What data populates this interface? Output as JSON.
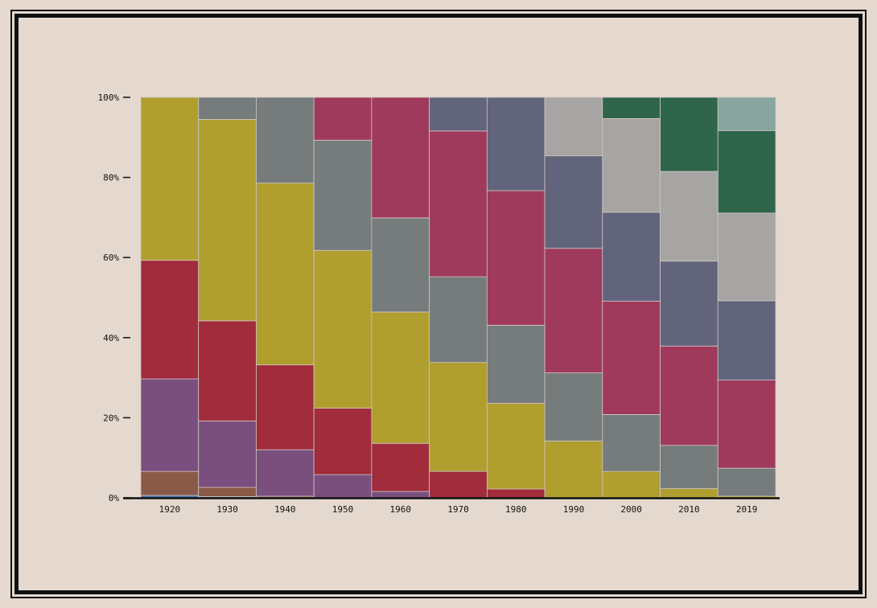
{
  "chart_data": {
    "type": "bar",
    "stacked": true,
    "normalized_percent": true,
    "title": "",
    "xlabel": "",
    "ylabel": "",
    "ylim": [
      0,
      100
    ],
    "grid": false,
    "legend": "none",
    "categories": [
      "1920",
      "1930",
      "1940",
      "1950",
      "1960",
      "1970",
      "1980",
      "1990",
      "2000",
      "2010",
      "2019"
    ],
    "y_ticks": [
      "0%",
      "20%",
      "40%",
      "60%",
      "80%",
      "100%"
    ],
    "series": [
      {
        "color": "#4a6fa5",
        "values": [
          0.6,
          0.3,
          0,
          0,
          0,
          0,
          0,
          0,
          0,
          0,
          0
        ]
      },
      {
        "color": "#8a5a48",
        "values": [
          6.0,
          2.3,
          0.4,
          0,
          0,
          0,
          0,
          0,
          0,
          0,
          0
        ]
      },
      {
        "color": "#7a4f7e",
        "values": [
          23.1,
          16.6,
          11.6,
          5.8,
          1.6,
          0,
          0,
          0,
          0,
          0,
          0
        ]
      },
      {
        "color": "#a12c3b",
        "values": [
          29.6,
          25.0,
          21.2,
          16.6,
          12.0,
          6.6,
          2.2,
          0,
          0,
          0,
          0
        ]
      },
      {
        "color": "#b09e2f",
        "values": [
          40.7,
          50.3,
          45.4,
          39.4,
          32.8,
          27.2,
          21.4,
          14.2,
          6.6,
          2.3,
          0.4
        ]
      },
      {
        "color": "#767b7c",
        "values": [
          0,
          5.5,
          21.4,
          27.5,
          23.5,
          21.4,
          19.5,
          17.0,
          14.2,
          10.8,
          7.0
        ]
      },
      {
        "color": "#a03a5c",
        "values": [
          0,
          0,
          0,
          10.7,
          30.1,
          36.4,
          33.6,
          31.1,
          28.3,
          24.8,
          22.0
        ]
      },
      {
        "color": "#62647c",
        "values": [
          0,
          0,
          0,
          0,
          0,
          8.4,
          23.3,
          23.1,
          22.2,
          21.2,
          19.8
        ]
      },
      {
        "color": "#a6a5a3",
        "values": [
          0,
          0,
          0,
          0,
          0,
          0,
          0,
          14.6,
          23.4,
          22.4,
          21.9
        ]
      },
      {
        "color": "#2e654b",
        "values": [
          0,
          0,
          0,
          0,
          0,
          0,
          0,
          0,
          5.3,
          18.5,
          20.6
        ]
      },
      {
        "color": "#88a59f",
        "values": [
          0,
          0,
          0,
          0,
          0,
          0,
          0,
          0,
          0,
          0,
          8.3
        ]
      }
    ]
  }
}
